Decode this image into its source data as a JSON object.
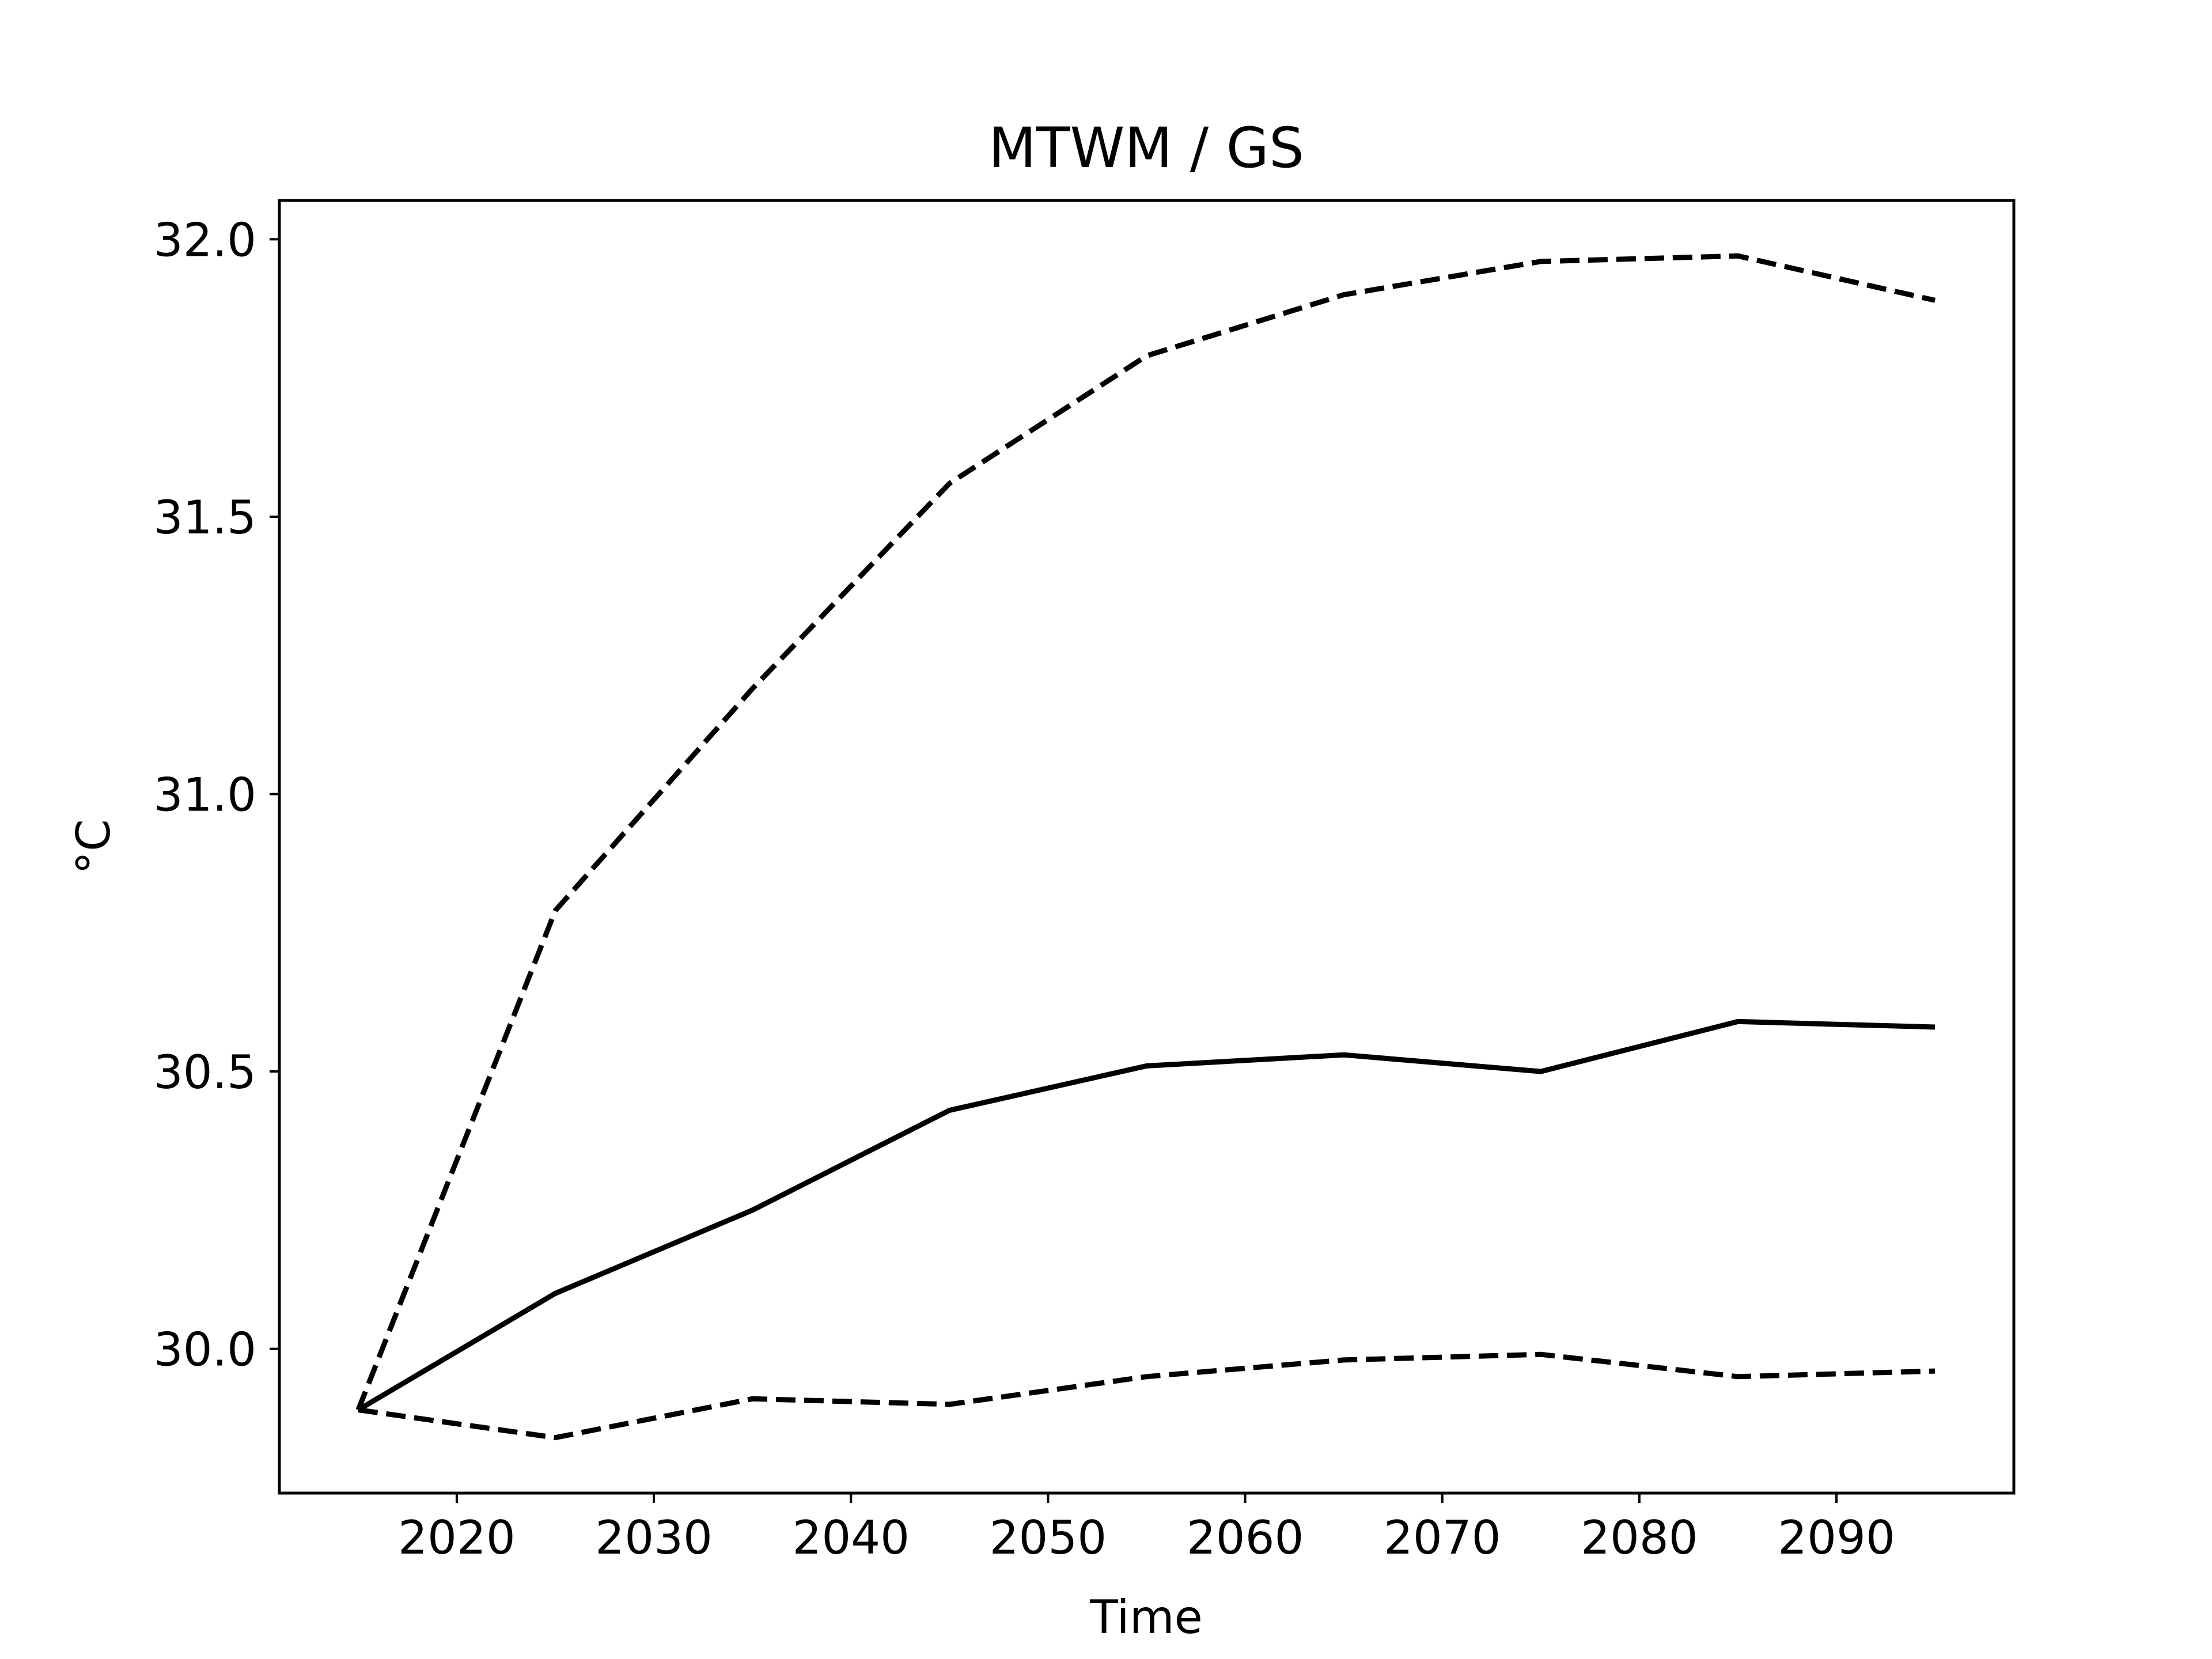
{
  "chart_data": {
    "type": "line",
    "title": "MTWM / GS",
    "xlabel": "Time",
    "ylabel": "°C",
    "xlim": [
      2011,
      2099
    ],
    "ylim": [
      29.74,
      32.07
    ],
    "xticks": [
      2020,
      2030,
      2040,
      2050,
      2060,
      2070,
      2080,
      2090
    ],
    "xtick_labels": [
      "2020",
      "2030",
      "2040",
      "2050",
      "2060",
      "2070",
      "2080",
      "2090"
    ],
    "yticks": [
      30.0,
      30.5,
      31.0,
      31.5,
      32.0
    ],
    "ytick_labels": [
      "30.0",
      "30.5",
      "31.0",
      "31.5",
      "32.0"
    ],
    "grid": false,
    "x": [
      2015,
      2025,
      2035,
      2045,
      2055,
      2065,
      2075,
      2085,
      2095
    ],
    "series": [
      {
        "style": "dashed",
        "color": "#000000",
        "values": [
          29.89,
          30.79,
          31.19,
          31.56,
          31.79,
          31.9,
          31.96,
          31.97,
          31.89
        ]
      },
      {
        "style": "solid",
        "color": "#000000",
        "values": [
          29.89,
          30.1,
          30.25,
          30.43,
          30.51,
          30.53,
          30.5,
          30.59,
          30.58
        ]
      },
      {
        "style": "dashed",
        "color": "#000000",
        "values": [
          29.89,
          29.84,
          29.91,
          29.9,
          29.95,
          29.98,
          29.99,
          29.95,
          29.96
        ]
      }
    ]
  }
}
